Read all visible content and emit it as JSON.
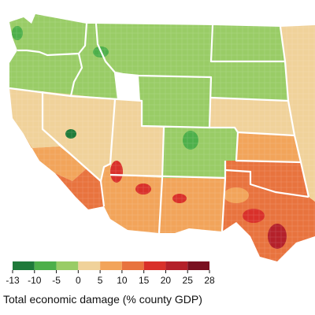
{
  "legend": {
    "title": "Total economic damage (% county GDP)",
    "ticks": [
      "-13",
      "-10",
      "-5",
      "0",
      "5",
      "10",
      "15",
      "20",
      "25",
      "28"
    ],
    "bins": [
      {
        "from": -13,
        "to": -10,
        "color": "#1f7a3a"
      },
      {
        "from": -10,
        "to": -5,
        "color": "#4daf4a"
      },
      {
        "from": -5,
        "to": 0,
        "color": "#99cc66"
      },
      {
        "from": 0,
        "to": 5,
        "color": "#f0d29a"
      },
      {
        "from": 5,
        "to": 10,
        "color": "#f2a45a"
      },
      {
        "from": 10,
        "to": 15,
        "color": "#e8733e"
      },
      {
        "from": 15,
        "to": 20,
        "color": "#d9302a"
      },
      {
        "from": 20,
        "to": 25,
        "color": "#b4202a"
      },
      {
        "from": 25,
        "to": 28,
        "color": "#7a1020"
      }
    ]
  },
  "map": {
    "background": "#ffffff",
    "border_color": "#ffffff",
    "regions": [
      {
        "name": "washington",
        "value": -4
      },
      {
        "name": "oregon",
        "value": -3
      },
      {
        "name": "california-north",
        "value": 3
      },
      {
        "name": "california-central",
        "value": 8
      },
      {
        "name": "california-south",
        "value": 12
      },
      {
        "name": "nevada",
        "value": 4
      },
      {
        "name": "idaho",
        "value": -3
      },
      {
        "name": "montana",
        "value": -4
      },
      {
        "name": "wyoming",
        "value": -3
      },
      {
        "name": "utah",
        "value": 1
      },
      {
        "name": "colorado",
        "value": -2
      },
      {
        "name": "arizona",
        "value": 9
      },
      {
        "name": "new-mexico",
        "value": 7
      },
      {
        "name": "north-dakota",
        "value": -4
      },
      {
        "name": "south-dakota",
        "value": -1
      },
      {
        "name": "nebraska",
        "value": 3
      },
      {
        "name": "kansas",
        "value": 6
      },
      {
        "name": "oklahoma",
        "value": 11
      },
      {
        "name": "texas",
        "value": 13
      }
    ],
    "hotspots": [
      {
        "name": "imperial-valley",
        "value": 18
      },
      {
        "name": "phoenix",
        "value": 17
      },
      {
        "name": "southern-new-mexico",
        "value": 16
      },
      {
        "name": "central-texas",
        "value": 19
      },
      {
        "name": "south-texas",
        "value": 21
      },
      {
        "name": "west-texas",
        "value": 9
      },
      {
        "name": "puget-sound",
        "value": -8
      },
      {
        "name": "northern-nevada-forest",
        "value": -11
      },
      {
        "name": "rocky-mountains",
        "value": -9
      },
      {
        "name": "western-montana",
        "value": -9
      }
    ]
  }
}
